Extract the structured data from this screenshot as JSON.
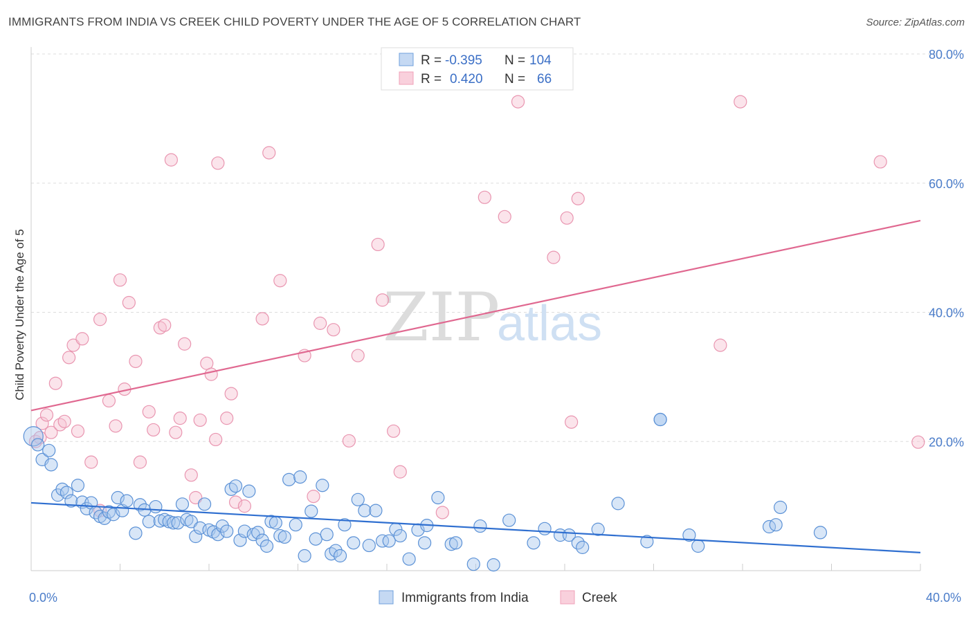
{
  "title": "IMMIGRANTS FROM INDIA VS CREEK CHILD POVERTY UNDER THE AGE OF 5 CORRELATION CHART",
  "source": "Source: ZipAtlas.com",
  "watermark": {
    "zip": "ZIP",
    "atlas": "atlas"
  },
  "colors": {
    "india": "#6fa0dc",
    "india_line": "#2f6fd0",
    "creek": "#f0a0b8",
    "creek_line": "#e06890",
    "grid": "#dddddd",
    "axis_text": "#4a7cc9"
  },
  "legend_top": {
    "rows": [
      {
        "r_label": "R =",
        "r_value": "-0.395",
        "n_label": "N =",
        "n_value": "104"
      },
      {
        "r_label": "R =",
        "r_value": "0.420",
        "n_label": "N =",
        "n_value": "66"
      }
    ]
  },
  "legend_bottom": {
    "india": "Immigrants from India",
    "creek": "Creek"
  },
  "chart_data": {
    "type": "scatter",
    "xlabel": "",
    "ylabel": "Child Poverty Under the Age of 5",
    "xlim": [
      0,
      40
    ],
    "ylim": [
      0,
      80
    ],
    "x_ticks": [
      "0.0%",
      "40.0%"
    ],
    "y_ticks": [
      "20.0%",
      "40.0%",
      "60.0%",
      "80.0%"
    ],
    "y_tick_values": [
      20,
      40,
      60,
      80
    ],
    "grid": true,
    "legend_position": "top-center",
    "series": [
      {
        "name": "Immigrants from India",
        "color": "#6fa0dc",
        "trend": {
          "x": [
            0,
            40
          ],
          "y": [
            10.5,
            2.8
          ]
        },
        "points": [
          [
            0.1,
            20.8
          ],
          [
            0.3,
            19.5
          ],
          [
            0.5,
            17.2
          ],
          [
            0.8,
            18.6
          ],
          [
            0.9,
            16.4
          ],
          [
            1.2,
            11.7
          ],
          [
            1.4,
            12.6
          ],
          [
            1.6,
            12.1
          ],
          [
            1.8,
            10.8
          ],
          [
            2.1,
            13.2
          ],
          [
            2.3,
            10.6
          ],
          [
            2.5,
            9.6
          ],
          [
            2.7,
            10.5
          ],
          [
            2.9,
            9.0
          ],
          [
            3.1,
            8.4
          ],
          [
            3.3,
            8.1
          ],
          [
            3.5,
            9.1
          ],
          [
            3.7,
            8.7
          ],
          [
            3.9,
            11.3
          ],
          [
            4.1,
            9.3
          ],
          [
            4.3,
            10.8
          ],
          [
            4.7,
            5.8
          ],
          [
            4.9,
            10.2
          ],
          [
            5.1,
            9.4
          ],
          [
            5.3,
            7.6
          ],
          [
            5.6,
            9.9
          ],
          [
            5.8,
            7.7
          ],
          [
            6.0,
            7.9
          ],
          [
            6.2,
            7.6
          ],
          [
            6.4,
            7.4
          ],
          [
            6.6,
            7.4
          ],
          [
            6.8,
            10.3
          ],
          [
            7.0,
            7.9
          ],
          [
            7.2,
            7.6
          ],
          [
            7.4,
            5.3
          ],
          [
            7.6,
            6.6
          ],
          [
            7.8,
            10.3
          ],
          [
            8.0,
            6.3
          ],
          [
            8.2,
            6.0
          ],
          [
            8.4,
            5.6
          ],
          [
            8.6,
            6.9
          ],
          [
            8.8,
            6.1
          ],
          [
            9.0,
            12.6
          ],
          [
            9.2,
            13.1
          ],
          [
            9.4,
            4.7
          ],
          [
            9.6,
            6.1
          ],
          [
            9.8,
            12.3
          ],
          [
            10.0,
            5.6
          ],
          [
            10.2,
            5.9
          ],
          [
            10.4,
            4.7
          ],
          [
            10.6,
            3.8
          ],
          [
            10.8,
            7.6
          ],
          [
            11.0,
            7.4
          ],
          [
            11.2,
            5.4
          ],
          [
            11.4,
            5.2
          ],
          [
            11.6,
            14.1
          ],
          [
            11.9,
            7.1
          ],
          [
            12.1,
            14.5
          ],
          [
            12.3,
            2.3
          ],
          [
            12.6,
            9.2
          ],
          [
            12.8,
            4.9
          ],
          [
            13.1,
            13.2
          ],
          [
            13.3,
            5.6
          ],
          [
            13.5,
            2.6
          ],
          [
            13.7,
            3.1
          ],
          [
            13.9,
            2.3
          ],
          [
            14.1,
            7.1
          ],
          [
            14.5,
            4.3
          ],
          [
            14.7,
            11.0
          ],
          [
            15.0,
            9.3
          ],
          [
            15.2,
            3.9
          ],
          [
            15.5,
            9.3
          ],
          [
            15.8,
            4.6
          ],
          [
            16.1,
            4.6
          ],
          [
            16.4,
            6.4
          ],
          [
            16.6,
            5.4
          ],
          [
            17.0,
            1.8
          ],
          [
            17.4,
            6.3
          ],
          [
            17.7,
            4.3
          ],
          [
            17.8,
            7.0
          ],
          [
            18.3,
            11.3
          ],
          [
            18.9,
            4.1
          ],
          [
            19.1,
            4.3
          ],
          [
            19.9,
            1.0
          ],
          [
            20.2,
            6.9
          ],
          [
            20.8,
            0.9
          ],
          [
            21.5,
            7.8
          ],
          [
            22.6,
            4.3
          ],
          [
            23.1,
            6.5
          ],
          [
            23.8,
            5.5
          ],
          [
            24.2,
            5.5
          ],
          [
            24.6,
            4.3
          ],
          [
            24.8,
            3.6
          ],
          [
            25.5,
            6.4
          ],
          [
            26.4,
            10.4
          ],
          [
            27.7,
            4.5
          ],
          [
            29.6,
            5.5
          ],
          [
            30.0,
            3.8
          ],
          [
            33.2,
            6.8
          ],
          [
            33.5,
            7.1
          ],
          [
            33.7,
            9.8
          ],
          [
            35.5,
            5.9
          ],
          [
            28.3,
            23.4
          ],
          [
            28.3,
            23.4
          ]
        ]
      },
      {
        "name": "Creek",
        "color": "#f0a0b8",
        "trend": {
          "x": [
            0,
            40
          ],
          "y": [
            24.8,
            54.2
          ]
        },
        "points": [
          [
            0.2,
            20.0
          ],
          [
            0.5,
            22.8
          ],
          [
            0.7,
            24.1
          ],
          [
            0.9,
            21.4
          ],
          [
            1.1,
            29.0
          ],
          [
            1.3,
            22.6
          ],
          [
            1.5,
            23.1
          ],
          [
            1.7,
            33.0
          ],
          [
            1.9,
            34.9
          ],
          [
            2.1,
            21.6
          ],
          [
            2.3,
            35.9
          ],
          [
            2.7,
            16.8
          ],
          [
            3.1,
            9.3
          ],
          [
            3.1,
            38.9
          ],
          [
            3.5,
            26.3
          ],
          [
            3.8,
            22.4
          ],
          [
            4.0,
            45.0
          ],
          [
            4.2,
            28.1
          ],
          [
            4.4,
            41.5
          ],
          [
            4.7,
            32.4
          ],
          [
            4.9,
            16.8
          ],
          [
            5.3,
            24.6
          ],
          [
            5.5,
            21.8
          ],
          [
            5.8,
            37.6
          ],
          [
            6.0,
            38.0
          ],
          [
            6.3,
            63.6
          ],
          [
            6.5,
            21.4
          ],
          [
            6.7,
            23.6
          ],
          [
            6.9,
            35.1
          ],
          [
            7.2,
            14.8
          ],
          [
            7.4,
            11.3
          ],
          [
            7.6,
            23.3
          ],
          [
            7.9,
            32.1
          ],
          [
            8.1,
            30.4
          ],
          [
            8.3,
            20.3
          ],
          [
            8.4,
            63.1
          ],
          [
            8.8,
            23.6
          ],
          [
            9.0,
            27.4
          ],
          [
            9.2,
            10.6
          ],
          [
            9.6,
            10.0
          ],
          [
            10.4,
            39.0
          ],
          [
            10.7,
            64.7
          ],
          [
            11.2,
            44.9
          ],
          [
            12.3,
            33.3
          ],
          [
            12.7,
            11.5
          ],
          [
            13.0,
            38.3
          ],
          [
            13.6,
            37.3
          ],
          [
            14.3,
            20.1
          ],
          [
            14.7,
            33.3
          ],
          [
            15.6,
            50.5
          ],
          [
            15.8,
            41.9
          ],
          [
            16.3,
            21.6
          ],
          [
            16.6,
            15.3
          ],
          [
            18.5,
            9.0
          ],
          [
            20.4,
            57.8
          ],
          [
            21.3,
            54.8
          ],
          [
            21.9,
            72.6
          ],
          [
            23.5,
            48.5
          ],
          [
            24.1,
            54.6
          ],
          [
            24.3,
            23.0
          ],
          [
            24.6,
            57.6
          ],
          [
            31.0,
            34.9
          ],
          [
            31.9,
            72.6
          ],
          [
            38.2,
            63.3
          ],
          [
            39.9,
            19.9
          ],
          [
            0.4,
            20.6
          ]
        ]
      }
    ]
  }
}
